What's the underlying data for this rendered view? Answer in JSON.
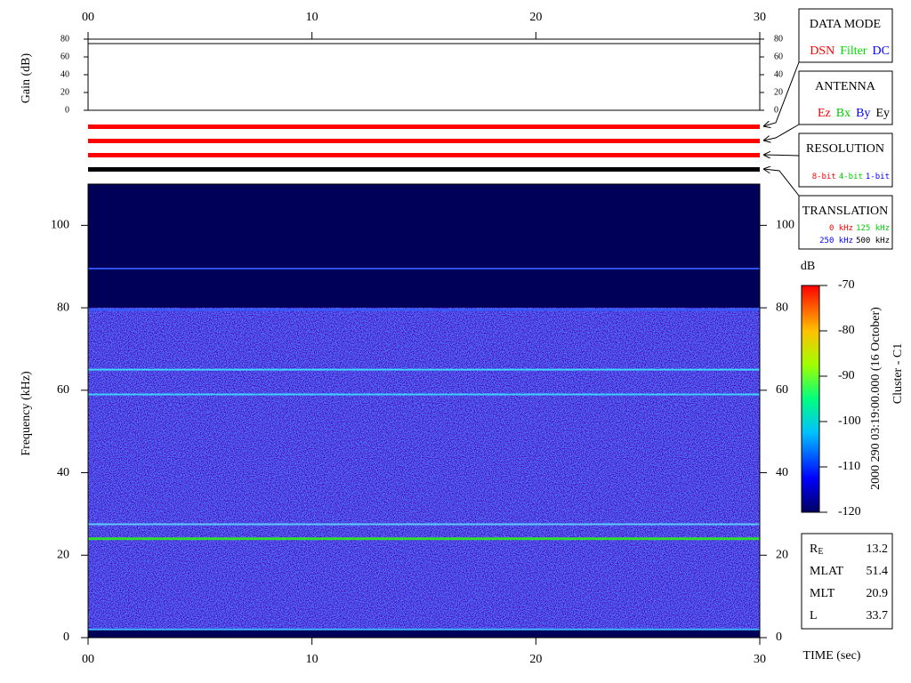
{
  "gain_panel": {
    "ylabel": "Gain (dB)",
    "ylim": [
      0,
      80
    ],
    "yticks": [
      0,
      20,
      40,
      60,
      80
    ]
  },
  "mode_bars": {
    "colors": [
      "#ff0000",
      "#ff0000",
      "#ff0000",
      "#000000"
    ]
  },
  "chart_data": {
    "type": "spectrogram",
    "ylabel": "Frequency (kHz)",
    "xlabel": "TIME (sec)",
    "xlim": [
      0,
      30
    ],
    "xticks": [
      {
        "value": 0,
        "label": "00"
      },
      10,
      20,
      30
    ],
    "ylim": [
      0,
      110
    ],
    "yticks": [
      0,
      20,
      40,
      60,
      80,
      100
    ],
    "noise_band": [
      2,
      80
    ],
    "lines": [
      {
        "y": 89.5,
        "color": "#3050ff"
      },
      {
        "y": 79.5,
        "color": "#3060ff"
      },
      {
        "y": 65,
        "color": "#40d8ff"
      },
      {
        "y": 59,
        "color": "#40d0ff"
      },
      {
        "y": 27.5,
        "color": "#60c8ff"
      },
      {
        "y": 24,
        "color": "#30e030"
      },
      {
        "y": 2,
        "color": "#40b0ff"
      }
    ],
    "colorbar": {
      "label": "dB",
      "lim": [
        -120,
        -70
      ],
      "ticks": [
        -70,
        -80,
        -90,
        -100,
        -110,
        -120
      ]
    },
    "side_label": "2000 290 03:19:00.000 (16 October)",
    "spacecraft": "Cluster - C1"
  },
  "legend": [
    {
      "title": "DATA MODE",
      "rows": [
        [
          {
            "text": "DSN",
            "color": "#ff0000"
          },
          {
            "text": "Filter",
            "color": "#00dd00"
          },
          {
            "text": "DC",
            "color": "#0000ff"
          }
        ]
      ]
    },
    {
      "title": "ANTENNA",
      "rows": [
        [
          {
            "text": "Ez",
            "color": "#ff0000"
          },
          {
            "text": "Bx",
            "color": "#00cc00"
          },
          {
            "text": "By",
            "color": "#0000ff"
          },
          {
            "text": "Ey",
            "color": "#000000"
          }
        ]
      ]
    },
    {
      "title": "RESOLUTION",
      "rows": [
        [
          {
            "text": "8-bit",
            "color": "#ff0000"
          },
          {
            "text": "4-bit",
            "color": "#00cc00"
          },
          {
            "text": "1-bit",
            "color": "#0000ff"
          }
        ]
      ]
    },
    {
      "title": "TRANSLATION",
      "rows": [
        [
          {
            "text": "0 kHz",
            "color": "#ff0000"
          },
          {
            "text": "125 kHz",
            "color": "#00cc00"
          }
        ],
        [
          {
            "text": "250 kHz",
            "color": "#0000ff"
          },
          {
            "text": "500 kHz",
            "color": "#000000"
          }
        ]
      ]
    }
  ],
  "ephemeris": [
    {
      "label": "R",
      "sub": "E",
      "value": 13.2
    },
    {
      "label": "MLAT",
      "value": 51.4
    },
    {
      "label": "MLT",
      "value": 20.9
    },
    {
      "label": "L",
      "value": 33.7
    }
  ]
}
